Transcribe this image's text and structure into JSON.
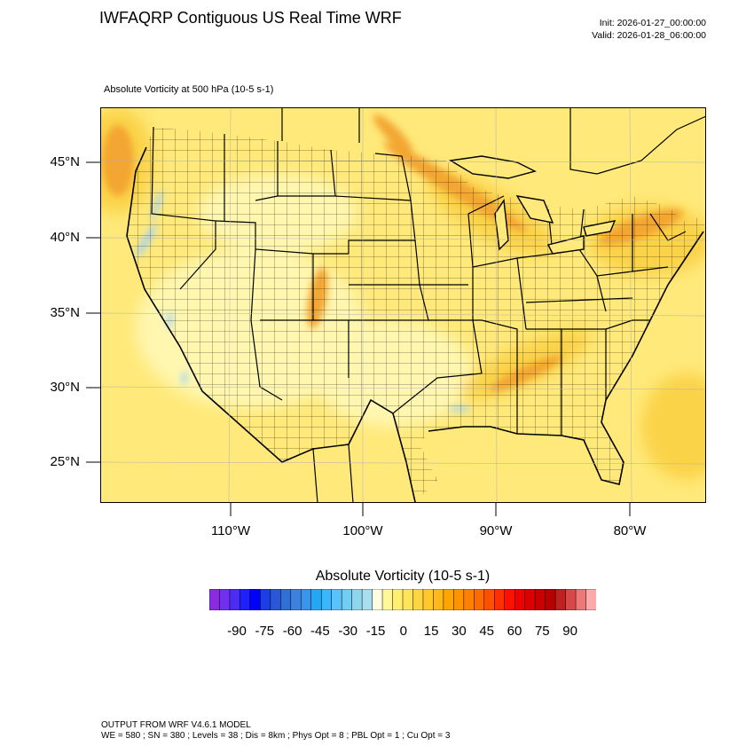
{
  "header": {
    "title": "IWFAQRP Contiguous US Real Time WRF",
    "init": "Init: 2026-01-27_00:00:00",
    "valid": "Valid: 2026-01-28_06:00:00"
  },
  "map": {
    "subtitle": "Absolute Vorticity at 500 hPa   (10-5 s-1)",
    "lat_labels": [
      "45°N",
      "40°N",
      "35°N",
      "30°N",
      "25°N"
    ],
    "lon_labels": [
      "110°W",
      "100°W",
      "90°W",
      "80°W"
    ],
    "field_colors": {
      "background": "#ffe97a",
      "low": "#fff7b0",
      "mid": "#fbd34a",
      "high": "#f3a630",
      "max": "#e8872a",
      "negative": "#a6d4f0"
    },
    "boundary_color": "#000000"
  },
  "colorbar": {
    "title": "Absolute Vorticity  (10-5 s-1)",
    "tick_labels": [
      "-90",
      "-75",
      "-60",
      "-45",
      "-30",
      "-15",
      "0",
      "15",
      "30",
      "45",
      "60",
      "75",
      "90"
    ],
    "colors": [
      "#8a2be2",
      "#7030f0",
      "#4b2cf5",
      "#2020ff",
      "#0000ff",
      "#1c3ee6",
      "#2a56d8",
      "#2f6fd6",
      "#3c80e0",
      "#3a94ec",
      "#23a8f5",
      "#38b6ff",
      "#58c2fb",
      "#72cdf2",
      "#8ed6ee",
      "#a8dff0",
      "#fffde0",
      "#fff79a",
      "#ffef70",
      "#ffe358",
      "#ffd640",
      "#ffc82c",
      "#ffb818",
      "#ffa500",
      "#ff9300",
      "#ff7f00",
      "#ff6a00",
      "#ff5000",
      "#ff3000",
      "#ff1000",
      "#f00000",
      "#dd0000",
      "#c80000",
      "#b80000",
      "#c02020",
      "#d84848",
      "#ee7777",
      "#ffaaaa"
    ]
  },
  "footer": {
    "line1": "OUTPUT FROM WRF V4.6.1 MODEL",
    "line2": "WE = 580 ; SN = 380 ; Levels = 38 ; Dis = 8km ; Phys Opt = 8 ; PBL Opt = 1 ; Cu Opt = 3"
  }
}
